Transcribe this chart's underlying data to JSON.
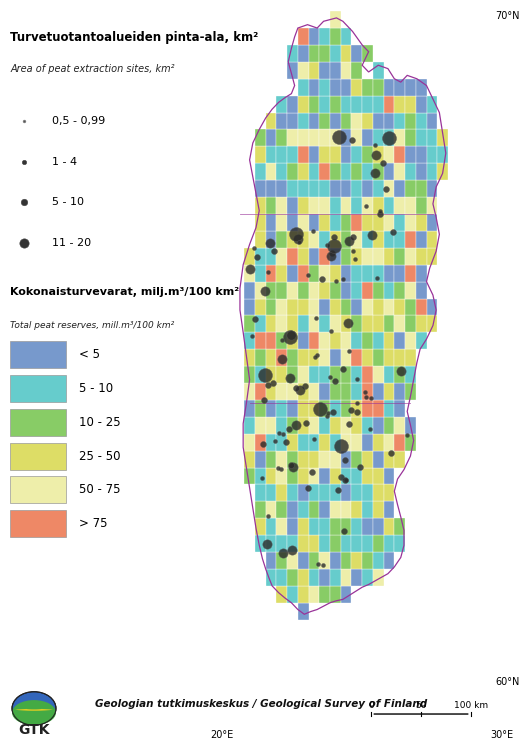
{
  "title_fi": "Turvetuotantoalueiden pinta-ala, km²",
  "title_en": "Area of peat extraction sites, km²",
  "legend2_fi": "Kokonaisturvevarat, milj.m³/100 km²",
  "legend2_en": "Total peat reserves, mill.m³/100 km²",
  "dot_labels": [
    "0,5 - 0,99",
    "1 - 4",
    "5 - 10",
    "11 - 20"
  ],
  "dot_sizes_pt": [
    3,
    6,
    11,
    18
  ],
  "dot_color_light": "#bbbbbb",
  "dot_color_mid": "#777777",
  "dot_color_dark": "#333333",
  "dot_color_black": "#111111",
  "color_labels": [
    "< 5",
    "5 - 10",
    "10 - 25",
    "25 - 50",
    "50 - 75",
    "> 75"
  ],
  "color_values": [
    "#7799cc",
    "#66cccc",
    "#88cc66",
    "#dddd66",
    "#eeeeaa",
    "#ee8866"
  ],
  "footer_text": "Geologian tutkimuskeskus / Geological Survey of Finland",
  "lat_top": "70°N",
  "lat_bot": "60°N",
  "lon_left": "20°E",
  "lon_right": "30°E",
  "bg_color": "#ffffff",
  "map_border_color": "#993399",
  "grid_rows": 40,
  "grid_cols": 30
}
